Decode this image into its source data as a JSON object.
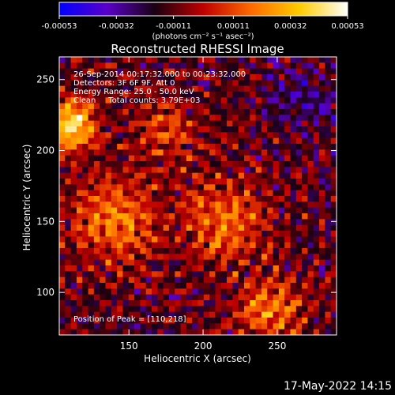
{
  "colorbar": {
    "ticks": [
      "-0.00053",
      "-0.00032",
      "-0.00011",
      "0.00011",
      "0.00032",
      "0.00053"
    ],
    "tick_values": [
      -0.00053,
      -0.00032,
      -0.00011,
      0.00011,
      0.00032,
      0.00053
    ],
    "range": [
      -0.00053,
      0.00053
    ],
    "units_label": "(photons cm⁻² s⁻¹ asec⁻²)",
    "colormap_stops": [
      "#0000ff",
      "#5a00c8",
      "#1a0010",
      "#c00000",
      "#ff6a00",
      "#ffcc00",
      "#ffffff"
    ]
  },
  "timestamp": "17-May-2022 14:15",
  "chart_data": {
    "type": "heatmap",
    "title": "Reconstructed RHESSI Image",
    "xlabel": "Heliocentric X (arcsec)",
    "ylabel": "Heliocentric Y (arcsec)",
    "xlim": [
      103,
      290
    ],
    "ylim": [
      70,
      266
    ],
    "xticks": [
      150,
      200,
      250
    ],
    "yticks": [
      100,
      150,
      200,
      250
    ],
    "xtick_labels": [
      "150",
      "200",
      "250"
    ],
    "ytick_labels": [
      "100",
      "150",
      "200",
      "250"
    ],
    "annotations": [
      "26-Sep-2014 00:17:32.000 to 00:23:32.000",
      "Detectors: 3F 6F 9F, Att 0",
      "Energy Range: 25.0 - 50.0 keV",
      "Clean     Total counts: 3.79E+03"
    ],
    "peak_label": "Position of Peak = [110,218]",
    "peak": [
      110,
      218
    ],
    "value_range": [
      -0.00053,
      0.00053
    ]
  }
}
